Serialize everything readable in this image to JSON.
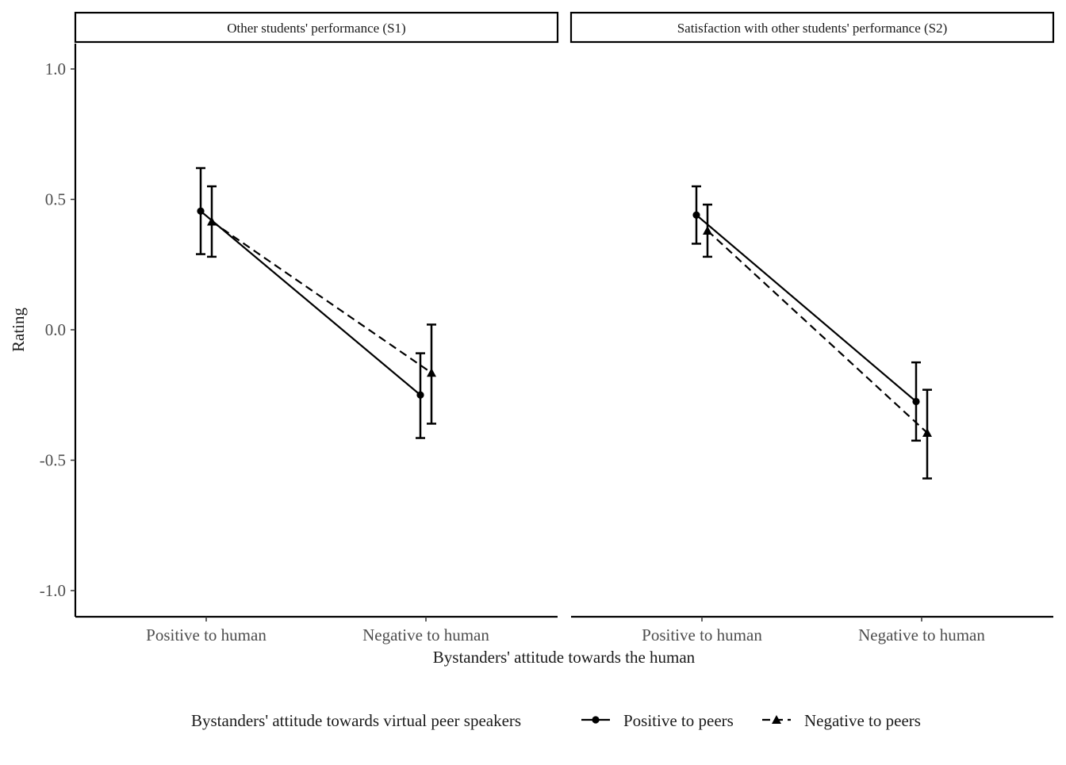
{
  "chart_data": {
    "type": "line",
    "title": "",
    "xlabel": "Bystanders' attitude towards the human",
    "ylabel": "Rating",
    "ylim": [
      -1.1,
      1.1
    ],
    "yticks": [
      1.0,
      0.5,
      0.0,
      -0.5,
      -1.0
    ],
    "ytick_labels": [
      "1.0",
      "0.5",
      "0.0",
      "-0.5",
      "-1.0"
    ],
    "categories": [
      "Positive to human",
      "Negative to human"
    ],
    "legend": {
      "title": "Bystanders' attitude towards virtual peer speakers",
      "position": "bottom"
    },
    "grid": false,
    "series_meta": [
      {
        "name": "Positive to peers",
        "marker": "circle",
        "line": "solid"
      },
      {
        "name": "Negative to peers",
        "marker": "triangle",
        "line": "dashed"
      }
    ],
    "panels": [
      {
        "strip_label": "Other students' performance (S1)",
        "series": [
          {
            "name": "Positive to peers",
            "values": [
              0.455,
              -0.25
            ],
            "lower": [
              0.29,
              -0.415
            ],
            "upper": [
              0.62,
              -0.09
            ]
          },
          {
            "name": "Negative to peers",
            "values": [
              0.415,
              -0.165
            ],
            "lower": [
              0.28,
              -0.36
            ],
            "upper": [
              0.55,
              0.02
            ]
          }
        ]
      },
      {
        "strip_label": "Satisfaction with other students' performance (S2)",
        "series": [
          {
            "name": "Positive to peers",
            "values": [
              0.44,
              -0.275
            ],
            "lower": [
              0.33,
              -0.425
            ],
            "upper": [
              0.55,
              -0.125
            ]
          },
          {
            "name": "Negative to peers",
            "values": [
              0.38,
              -0.395
            ],
            "lower": [
              0.28,
              -0.57
            ],
            "upper": [
              0.48,
              -0.23
            ]
          }
        ]
      }
    ]
  }
}
